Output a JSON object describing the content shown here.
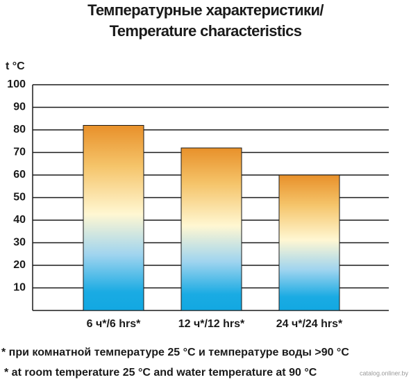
{
  "chart_data": {
    "type": "bar",
    "title": [
      "Температурные характеристики/",
      "Temperature characteristics"
    ],
    "y_label": "t °C",
    "categories": [
      "6 ч*/6 hrs*",
      "12 ч*/12 hrs*",
      "24 ч*/24 hrs*"
    ],
    "values": [
      82,
      72,
      60
    ],
    "ylim": [
      0,
      100
    ],
    "yticks": [
      10,
      20,
      30,
      40,
      50,
      60,
      70,
      80,
      90,
      100
    ],
    "grid": true,
    "footnotes": [
      "* при комнатной температуре 25 °C и температуре воды >90 °C",
      "* at room temperature 25 °C and water temperature at 90 °C"
    ],
    "watermark": "catalog.onliner.by"
  }
}
